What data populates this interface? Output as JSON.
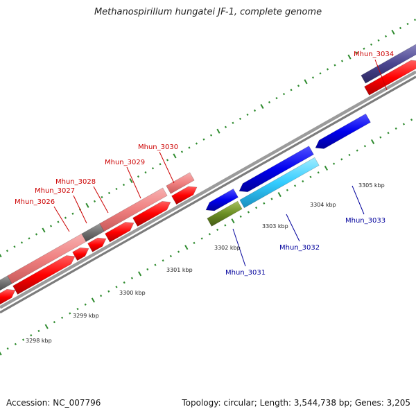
{
  "title": "Methanospirillum hungatei JF-1, complete genome",
  "accession_text": "Accession: NC_007796",
  "topology_text": "Topology: circular; Length: 3,544,738 bp; Genes: 3,205",
  "colors": {
    "backbone": "#8a8a8a",
    "tick": "#2e8b2e",
    "forward_gene": "#ff0000",
    "reverse_gene": "#0000ee",
    "forward_label": "#cc0000",
    "reverse_label": "#00009c"
  },
  "scale_labels": [
    "3298 kbp",
    "3299 kbp",
    "3300 kbp",
    "3301 kbp",
    "3302 kbp",
    "3303 kbp",
    "3304 kbp",
    "3305 kbp"
  ],
  "genes": [
    {
      "label": "Mhun_3026",
      "strand": "forward",
      "label_color": "#cc0000"
    },
    {
      "label": "Mhun_3027",
      "strand": "forward",
      "label_color": "#cc0000"
    },
    {
      "label": "Mhun_3028",
      "strand": "forward",
      "label_color": "#cc0000"
    },
    {
      "label": "Mhun_3029",
      "strand": "forward",
      "label_color": "#cc0000"
    },
    {
      "label": "Mhun_3030",
      "strand": "forward",
      "label_color": "#cc0000"
    },
    {
      "label": "Mhun_3031",
      "strand": "reverse",
      "label_color": "#00009c"
    },
    {
      "label": "Mhun_3032",
      "strand": "reverse",
      "label_color": "#00009c"
    },
    {
      "label": "Mhun_3033",
      "strand": "reverse",
      "label_color": "#00009c"
    },
    {
      "label": "Mhun_3034",
      "strand": "forward",
      "label_color": "#cc0000"
    }
  ]
}
